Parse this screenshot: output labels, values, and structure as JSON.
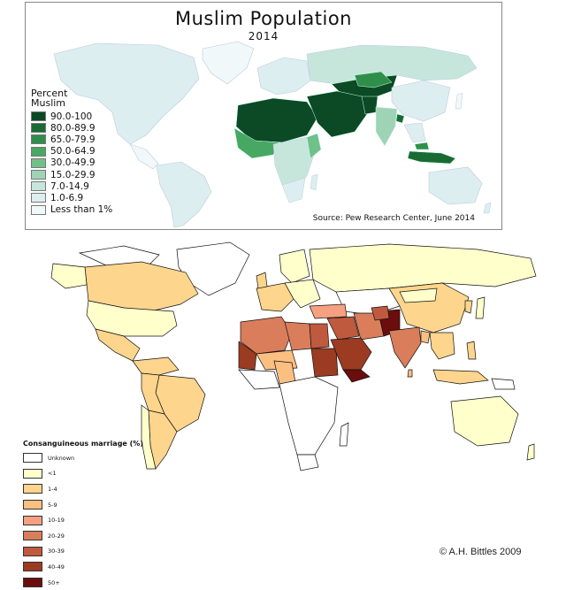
{
  "map_top": {
    "title": "Muslim Population",
    "year": "2014",
    "legend_title": "Percent\nMuslim",
    "legend": [
      {
        "label": "90.0-100",
        "color": "#0b4a24"
      },
      {
        "label": "80.0-89.9",
        "color": "#1a6b33"
      },
      {
        "label": "65.0-79.9",
        "color": "#2f8f4a"
      },
      {
        "label": "50.0-64.9",
        "color": "#47a863"
      },
      {
        "label": "30.0-49.9",
        "color": "#70c08a"
      },
      {
        "label": "15.0-29.9",
        "color": "#9fd3b6"
      },
      {
        "label": "7.0-14.9",
        "color": "#c6e6dc"
      },
      {
        "label": "1.0-6.9",
        "color": "#dceef0"
      },
      {
        "label": "Less than 1%",
        "color": "#f1f8fa"
      }
    ],
    "source": "Source: Pew Research Center, June 2014"
  },
  "map_bottom": {
    "legend_title": "Consanguineous marriage (%)",
    "legend": [
      {
        "label": "Unknown",
        "color": "#ffffff"
      },
      {
        "label": "<1",
        "color": "#ffffcc"
      },
      {
        "label": "1-4",
        "color": "#fdd58c"
      },
      {
        "label": "5-9",
        "color": "#fcbf82"
      },
      {
        "label": "10-19",
        "color": "#f6a082"
      },
      {
        "label": "20-29",
        "color": "#d97d5b"
      },
      {
        "label": "30-39",
        "color": "#bf5a3f"
      },
      {
        "label": "40-49",
        "color": "#9b3b22"
      },
      {
        "label": "50+",
        "color": "#6b0d0d"
      }
    ],
    "credit": "© A.H. Bittles 2009"
  }
}
